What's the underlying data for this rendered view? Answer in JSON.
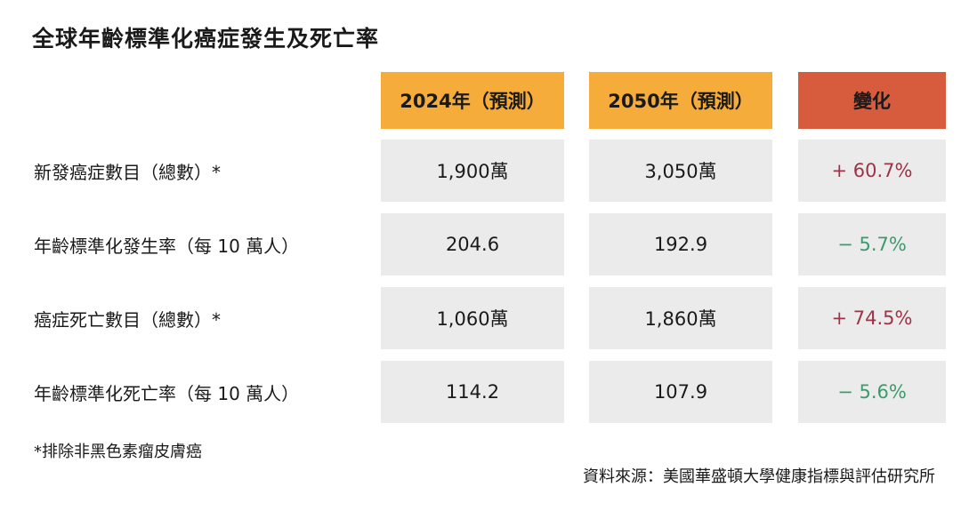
{
  "chart_data": {
    "type": "table",
    "title": "全球年齡標準化癌症發生及死亡率",
    "columns": [
      "2024年（預測）",
      "2050年（預測）",
      "變化"
    ],
    "rows": [
      {
        "label": "新發癌症數目（總數）*",
        "v2024": "1,900萬",
        "v2050": "3,050萬",
        "change": "+ 60.7%",
        "direction": "up"
      },
      {
        "label": "年齡標準化發生率（每 10 萬人）",
        "v2024": "204.6",
        "v2050": "192.9",
        "change": "− 5.7%",
        "direction": "down"
      },
      {
        "label": "癌症死亡數目（總數）*",
        "v2024": "1,060萬",
        "v2050": "1,860萬",
        "change": "+ 74.5%",
        "direction": "up"
      },
      {
        "label": "年齡標準化死亡率（每 10 萬人）",
        "v2024": "114.2",
        "v2050": "107.9",
        "change": "− 5.6%",
        "direction": "down"
      }
    ],
    "footnote": "*排除非黑色素瘤皮膚癌",
    "source": "資料來源：美國華盛頓大學健康指標與評估研究所"
  },
  "colors": {
    "header_year": "#f5ac3b",
    "header_change": "#d75b3d",
    "cell_bg": "#ebebeb",
    "increase": "#9b3447",
    "decrease": "#3c9b6c"
  }
}
